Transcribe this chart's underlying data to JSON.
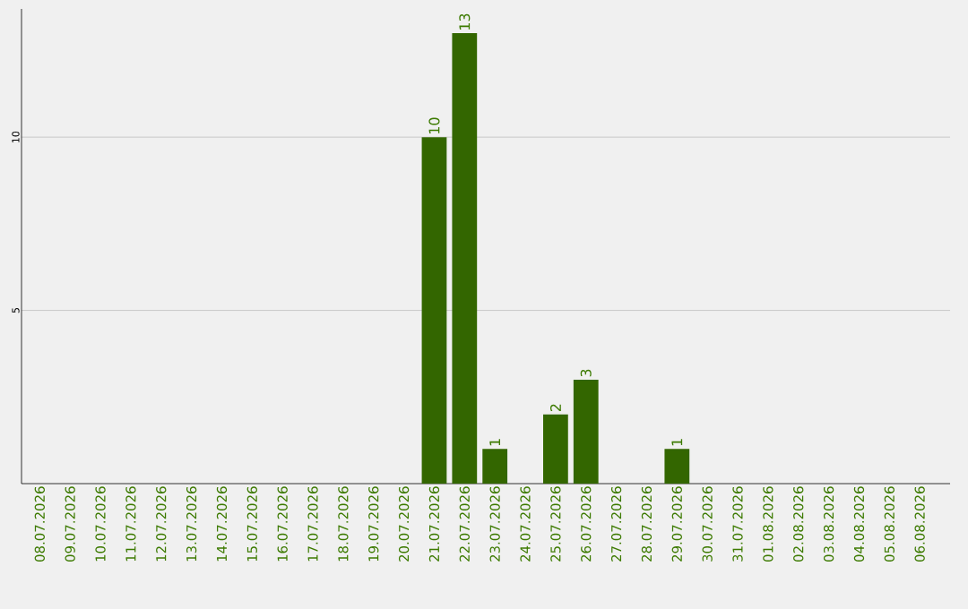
{
  "chart_data": {
    "type": "bar",
    "categories": [
      "08.07.2026",
      "09.07.2026",
      "10.07.2026",
      "11.07.2026",
      "12.07.2026",
      "13.07.2026",
      "14.07.2026",
      "15.07.2026",
      "16.07.2026",
      "17.07.2026",
      "18.07.2026",
      "19.07.2026",
      "20.07.2026",
      "21.07.2026",
      "22.07.2026",
      "23.07.2026",
      "24.07.2026",
      "25.07.2026",
      "26.07.2026",
      "27.07.2026",
      "28.07.2026",
      "29.07.2026",
      "30.07.2026",
      "31.07.2026",
      "01.08.2026",
      "02.08.2026",
      "03.08.2026",
      "04.08.2026",
      "05.08.2026",
      "06.08.2026"
    ],
    "values": [
      0,
      0,
      0,
      0,
      0,
      0,
      0,
      0,
      0,
      0,
      0,
      0,
      0,
      10,
      13,
      1,
      0,
      2,
      3,
      0,
      0,
      1,
      0,
      0,
      0,
      0,
      0,
      0,
      0,
      0
    ],
    "value_labels": [
      null,
      null,
      null,
      null,
      null,
      null,
      null,
      null,
      null,
      null,
      null,
      null,
      null,
      "10",
      "13",
      "1",
      null,
      "2",
      "3",
      null,
      null,
      "1",
      null,
      null,
      null,
      null,
      null,
      null,
      null,
      null
    ],
    "color": "#336600",
    "ylim": [
      0,
      13.7
    ],
    "yticks": [
      5,
      10
    ],
    "grid": "y"
  }
}
